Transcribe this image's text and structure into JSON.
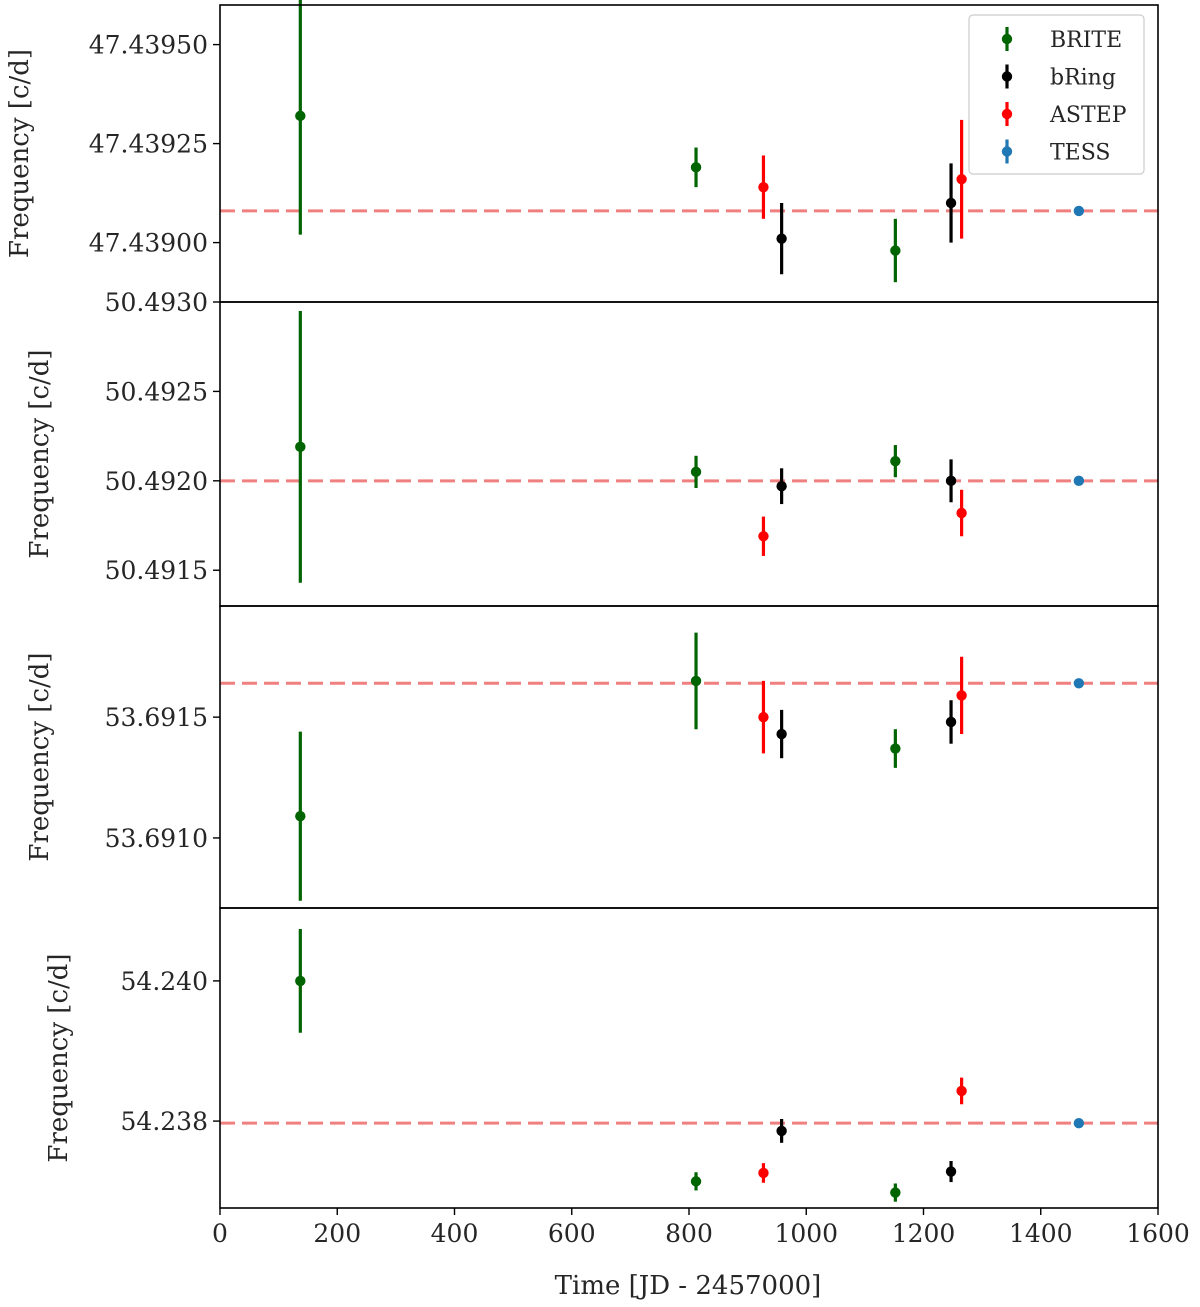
{
  "chart_data": {
    "type": "scatter",
    "x_label": "Time [JD - 2457000]",
    "xlim": [
      0,
      1600
    ],
    "x_ticks": [
      0,
      200,
      400,
      600,
      800,
      1000,
      1200,
      1400,
      1600
    ],
    "grid": false,
    "legend": {
      "location": "top-right",
      "panel": 0,
      "entries": [
        "BRITE",
        "bRing",
        "ASTEP",
        "TESS"
      ]
    },
    "colors": {
      "BRITE": "#006400",
      "bRing": "#000000",
      "ASTEP": "#ff0000",
      "TESS": "#1f77b4",
      "reference_line": "#f08080"
    },
    "panels": [
      {
        "ylabel": "Frequency [c/d]",
        "ylim": [
          47.43885,
          47.4396
        ],
        "yticks": [
          47.439,
          47.43925,
          47.4395
        ],
        "ytick_labels": [
          "47.43900",
          "47.43925",
          "47.43950"
        ],
        "reference": 47.43908,
        "series": [
          {
            "name": "BRITE",
            "points": [
              {
                "x": 137,
                "y": 47.43932,
                "yerr": 0.0003
              },
              {
                "x": 812,
                "y": 47.43919,
                "yerr": 5e-05
              },
              {
                "x": 1152,
                "y": 47.43898,
                "yerr": 8e-05
              }
            ]
          },
          {
            "name": "bRing",
            "points": [
              {
                "x": 958,
                "y": 47.43901,
                "yerr": 9e-05
              },
              {
                "x": 1247,
                "y": 47.4391,
                "yerr": 0.0001
              }
            ]
          },
          {
            "name": "ASTEP",
            "points": [
              {
                "x": 927,
                "y": 47.43914,
                "yerr": 8e-05
              },
              {
                "x": 1265,
                "y": 47.43916,
                "yerr": 0.00015
              }
            ]
          },
          {
            "name": "TESS",
            "points": [
              {
                "x": 1465,
                "y": 47.43908,
                "yerr": 1e-05
              }
            ]
          }
        ]
      },
      {
        "ylabel": "Frequency [c/d]",
        "ylim": [
          50.4913,
          50.493
        ],
        "yticks": [
          50.4915,
          50.492,
          50.4925,
          50.493
        ],
        "ytick_labels": [
          "50.4915",
          "50.4920",
          "50.4925",
          "50.4930"
        ],
        "reference": 50.492,
        "series": [
          {
            "name": "BRITE",
            "points": [
              {
                "x": 137,
                "y": 50.49219,
                "yerr": 0.00076
              },
              {
                "x": 812,
                "y": 50.49205,
                "yerr": 9e-05
              },
              {
                "x": 1152,
                "y": 50.49211,
                "yerr": 9e-05
              }
            ]
          },
          {
            "name": "bRing",
            "points": [
              {
                "x": 958,
                "y": 50.49197,
                "yerr": 0.0001
              },
              {
                "x": 1247,
                "y": 50.492,
                "yerr": 0.00012
              }
            ]
          },
          {
            "name": "ASTEP",
            "points": [
              {
                "x": 927,
                "y": 50.49169,
                "yerr": 0.00011
              },
              {
                "x": 1265,
                "y": 50.49182,
                "yerr": 0.00013
              }
            ]
          },
          {
            "name": "TESS",
            "points": [
              {
                "x": 1465,
                "y": 50.492,
                "yerr": 1e-05
              }
            ]
          }
        ]
      },
      {
        "ylabel": "Frequency [c/d]",
        "ylim": [
          53.69071,
          53.69196
        ],
        "yticks": [
          53.691,
          53.6915
        ],
        "ytick_labels": [
          "53.6910",
          "53.6915"
        ],
        "reference": 53.69164,
        "series": [
          {
            "name": "BRITE",
            "points": [
              {
                "x": 137,
                "y": 53.69109,
                "yerr": 0.00035
              },
              {
                "x": 812,
                "y": 53.69165,
                "yerr": 0.0002
              },
              {
                "x": 1152,
                "y": 53.69137,
                "yerr": 8e-05
              }
            ]
          },
          {
            "name": "bRing",
            "points": [
              {
                "x": 958,
                "y": 53.69143,
                "yerr": 0.0001
              },
              {
                "x": 1247,
                "y": 53.69148,
                "yerr": 9e-05
              }
            ]
          },
          {
            "name": "ASTEP",
            "points": [
              {
                "x": 927,
                "y": 53.6915,
                "yerr": 0.00015
              },
              {
                "x": 1265,
                "y": 53.69159,
                "yerr": 0.00016
              }
            ]
          },
          {
            "name": "TESS",
            "points": [
              {
                "x": 1465,
                "y": 53.69164,
                "yerr": 1e-05
              }
            ]
          }
        ]
      },
      {
        "ylabel": "Frequency [c/d]",
        "ylim": [
          54.23676,
          54.24104
        ],
        "yticks": [
          54.238,
          54.24
        ],
        "ytick_labels": [
          "54.238",
          "54.240"
        ],
        "reference": 54.23797,
        "series": [
          {
            "name": "BRITE",
            "points": [
              {
                "x": 137,
                "y": 54.24,
                "yerr": 0.00074
              },
              {
                "x": 812,
                "y": 54.23714,
                "yerr": 0.00013
              },
              {
                "x": 1152,
                "y": 54.23698,
                "yerr": 0.00013
              }
            ]
          },
          {
            "name": "bRing",
            "points": [
              {
                "x": 958,
                "y": 54.23786,
                "yerr": 0.00017
              },
              {
                "x": 1247,
                "y": 54.23728,
                "yerr": 0.00015
              }
            ]
          },
          {
            "name": "ASTEP",
            "points": [
              {
                "x": 927,
                "y": 54.23726,
                "yerr": 0.00014
              },
              {
                "x": 1265,
                "y": 54.23843,
                "yerr": 0.00019
              }
            ]
          },
          {
            "name": "TESS",
            "points": [
              {
                "x": 1465,
                "y": 54.23797,
                "yerr": 1e-05
              }
            ]
          }
        ]
      }
    ]
  }
}
